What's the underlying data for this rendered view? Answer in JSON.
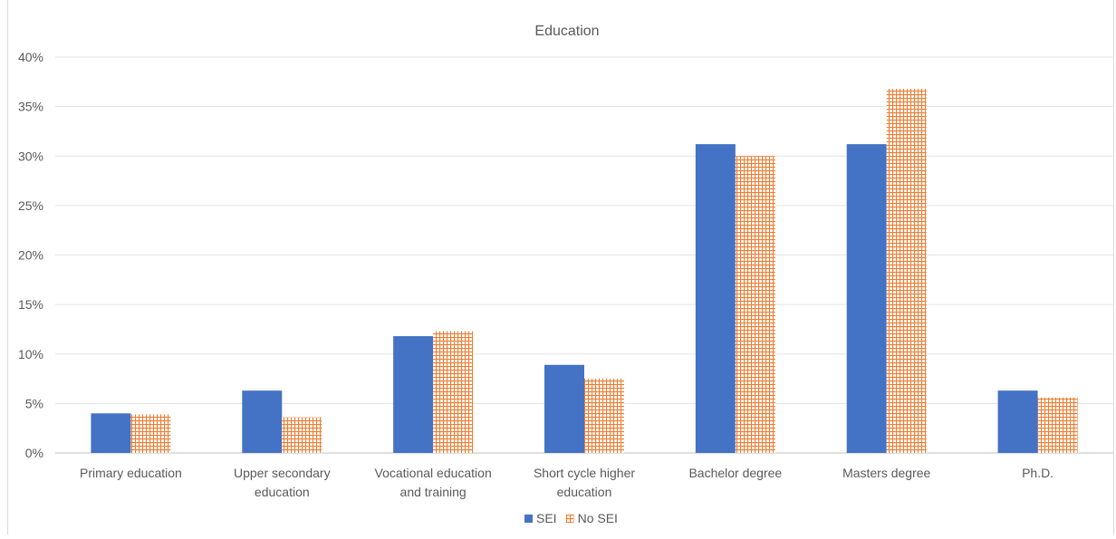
{
  "chart_data": {
    "type": "bar",
    "title": "Education",
    "xlabel": "",
    "ylabel": "",
    "ylim": [
      0,
      0.4
    ],
    "yticks": [
      "0%",
      "5%",
      "10%",
      "15%",
      "20%",
      "25%",
      "30%",
      "35%",
      "40%"
    ],
    "grid": true,
    "legend_position": "bottom",
    "categories": [
      [
        "Primary education"
      ],
      [
        "Upper secondary",
        "education"
      ],
      [
        "Vocational education",
        "and training"
      ],
      [
        "Short cycle higher",
        "education"
      ],
      [
        "Bachelor degree"
      ],
      [
        "Masters degree"
      ],
      [
        "Ph.D."
      ]
    ],
    "series": [
      {
        "name": "SEI",
        "color": "#4472c4",
        "pattern": "solid",
        "values": [
          0.04,
          0.063,
          0.118,
          0.089,
          0.312,
          0.312,
          0.063
        ]
      },
      {
        "name": "No SEI",
        "color": "#ed7d31",
        "pattern": "grid",
        "values": [
          0.039,
          0.036,
          0.123,
          0.075,
          0.3,
          0.368,
          0.056
        ]
      }
    ]
  }
}
